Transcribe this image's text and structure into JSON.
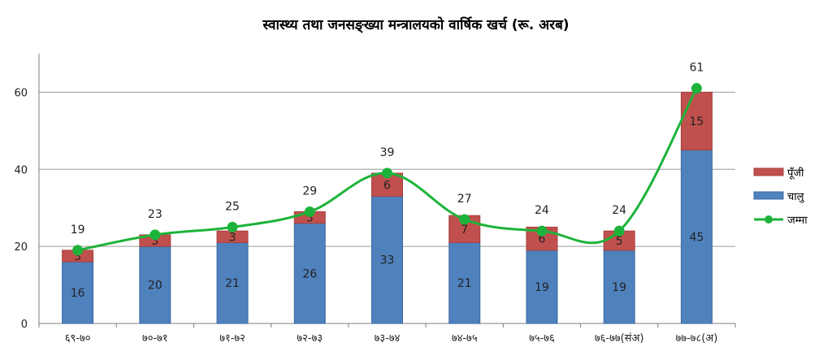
{
  "chart_data": {
    "type": "bar",
    "title": "स्वास्थ्य तथा जनसङ्ख्या मन्त्रालयको वार्षिक खर्च (रू. अरब)",
    "categories": [
      "६९-७०",
      "७०-७१",
      "७१-७२",
      "७२-७३",
      "७३-७४",
      "७४-७५",
      "७५-७६",
      "७६-७७(संअ)",
      "७७-७८(अ)"
    ],
    "ylim": [
      0,
      70
    ],
    "yticks": [
      0,
      20,
      40,
      60
    ],
    "grid": true,
    "legend_position": "right",
    "series": [
      {
        "name": "चालु",
        "kind": "bar",
        "color": "#4F81BD",
        "values": [
          16,
          20,
          21,
          26,
          33,
          21,
          19,
          19,
          45
        ]
      },
      {
        "name": "पूँजी",
        "kind": "bar",
        "color": "#C0504D",
        "values": [
          3,
          3,
          3,
          3,
          6,
          7,
          6,
          5,
          15
        ]
      },
      {
        "name": "जम्मा",
        "kind": "line",
        "color": "#1DB33A",
        "values": [
          19,
          23,
          25,
          29,
          39,
          27,
          24,
          24,
          61
        ]
      }
    ],
    "legend_order": [
      "पूँजी",
      "चालु",
      "जम्मा"
    ]
  }
}
